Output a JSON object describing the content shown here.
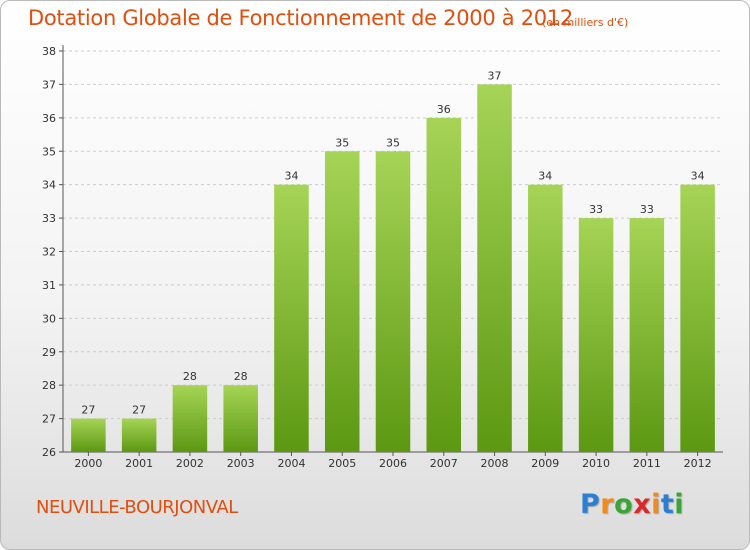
{
  "header": {
    "title": "Dotation Globale de Fonctionnement de 2000 à 2012",
    "unit_note": "(en milliers d'€)"
  },
  "footer": {
    "municipality": "NEUVILLE-BOURJONVAL",
    "logo": {
      "letters": [
        "P",
        "r",
        "o",
        "x",
        "i",
        "t",
        "i"
      ],
      "colors": [
        "#2a7fd4",
        "#f08a1c",
        "#3aa535",
        "#d82a2a",
        "#f08a1c",
        "#2a7fd4",
        "#3aa535"
      ]
    }
  },
  "colors": {
    "bar_top": "#a6d456",
    "bar_bottom": "#5c9812",
    "grid": "#cccccc",
    "axis": "#555555",
    "title": "#e24e0d"
  },
  "chart_data": {
    "type": "bar",
    "title": "Dotation Globale de Fonctionnement de 2000 à 2012",
    "subtitle": "(en milliers d'€)",
    "xlabel": "",
    "ylabel": "",
    "categories": [
      "2000",
      "2001",
      "2002",
      "2003",
      "2004",
      "2005",
      "2006",
      "2007",
      "2008",
      "2009",
      "2010",
      "2011",
      "2012"
    ],
    "values": [
      27,
      27,
      28,
      28,
      34,
      35,
      35,
      36,
      37,
      34,
      33,
      33,
      34
    ],
    "ylim": [
      26,
      38
    ],
    "yticks": [
      26,
      27,
      28,
      29,
      30,
      31,
      32,
      33,
      34,
      35,
      36,
      37,
      38
    ],
    "grid": true,
    "grid_style": "dashed horizontal"
  }
}
